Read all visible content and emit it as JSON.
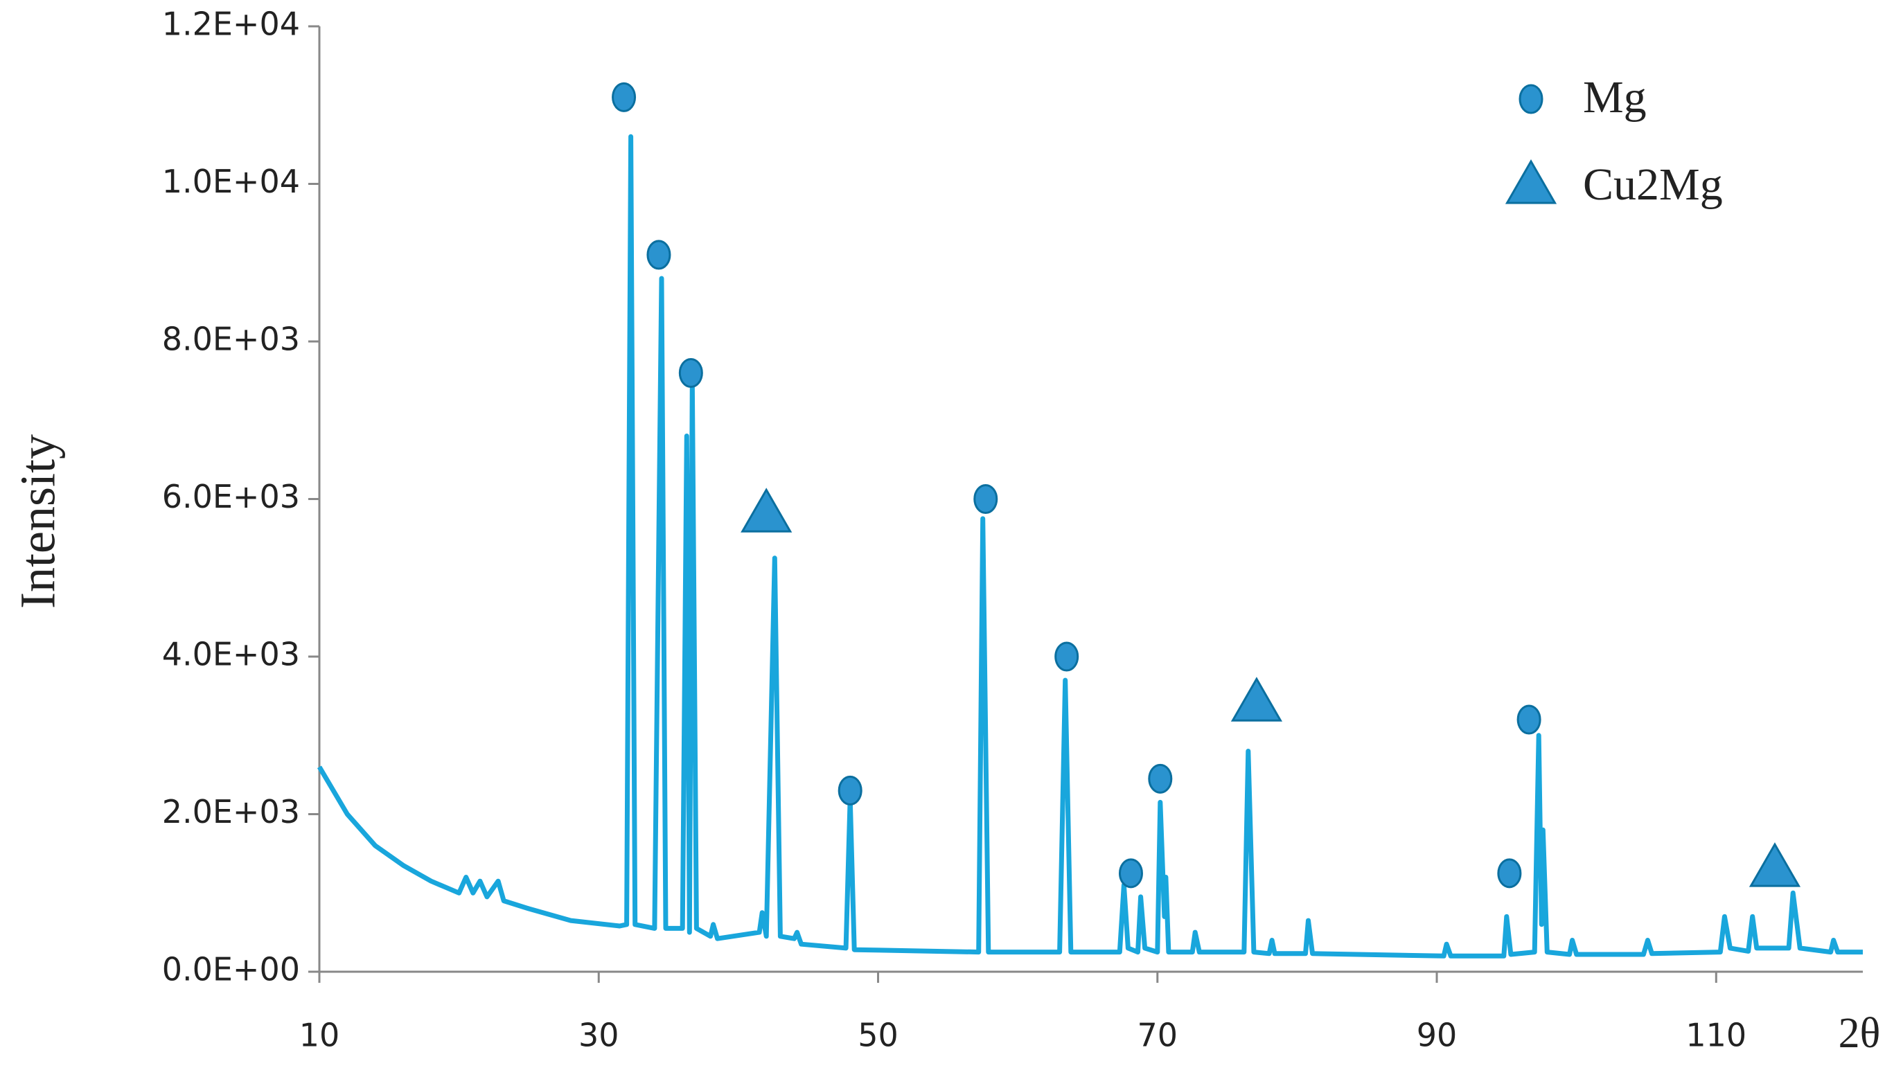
{
  "chart_data": {
    "type": "line",
    "y_label": "Intensity",
    "x_label": "2θ",
    "xlim": [
      10,
      120.5
    ],
    "xticks": [
      10,
      30,
      50,
      70,
      90,
      110
    ],
    "ylim": [
      0,
      12000
    ],
    "yticks": [
      {
        "value": 0,
        "label": "0.0E+00"
      },
      {
        "value": 2000,
        "label": "2.0E+03"
      },
      {
        "value": 4000,
        "label": "4.0E+03"
      },
      {
        "value": 6000,
        "label": "6.0E+03"
      },
      {
        "value": 8000,
        "label": "8.0E+03"
      },
      {
        "value": 10000,
        "label": "1.0E+04"
      },
      {
        "value": 12000,
        "label": "1.2E+04"
      }
    ],
    "color": "#19a6dc",
    "x": [
      10,
      12,
      14,
      16,
      18,
      20,
      20.5,
      21,
      21.5,
      22,
      22.8,
      23.2,
      25,
      28,
      31.5,
      32,
      32.3,
      32.6,
      34,
      34.5,
      34.8,
      36,
      36.3,
      36.5,
      36.7,
      37,
      38,
      38.2,
      38.5,
      41.5,
      41.7,
      42,
      42.6,
      43,
      44,
      44.2,
      44.5,
      47.7,
      48,
      48.3,
      57.2,
      57.5,
      57.9,
      63,
      63.4,
      63.8,
      67.3,
      67.6,
      67.9,
      68.6,
      68.8,
      69.1,
      70,
      70.2,
      70.5,
      70.6,
      70.8,
      72.5,
      72.7,
      73,
      76.2,
      76.5,
      76.9,
      78,
      78.2,
      78.4,
      80.6,
      80.8,
      81.1,
      90.5,
      90.7,
      91,
      94.8,
      95,
      95.3,
      97,
      97.3,
      97.5,
      97.6,
      97.9,
      99.5,
      99.7,
      100,
      104.8,
      105.1,
      105.4,
      110.3,
      110.6,
      111,
      112.3,
      112.6,
      112.9,
      115.2,
      115.5,
      116,
      118.2,
      118.4,
      118.7,
      120.5
    ],
    "values": [
      2600,
      2000,
      1600,
      1350,
      1150,
      1000,
      1200,
      1000,
      1150,
      950,
      1150,
      900,
      800,
      650,
      580,
      600,
      10600,
      600,
      550,
      8800,
      550,
      550,
      6800,
      500,
      7500,
      550,
      450,
      600,
      420,
      500,
      750,
      450,
      5250,
      450,
      420,
      500,
      350,
      300,
      2200,
      280,
      250,
      5750,
      250,
      250,
      3700,
      250,
      250,
      1100,
      300,
      250,
      950,
      300,
      250,
      2150,
      700,
      1200,
      250,
      250,
      500,
      250,
      250,
      2800,
      250,
      230,
      400,
      230,
      230,
      650,
      230,
      200,
      350,
      200,
      200,
      700,
      220,
      250,
      3000,
      600,
      1800,
      250,
      220,
      400,
      220,
      220,
      400,
      230,
      250,
      700,
      300,
      260,
      700,
      300,
      300,
      1000,
      300,
      250,
      400,
      250,
      250
    ],
    "markers": [
      {
        "name": "Mg",
        "shape": "circle",
        "color": "#2a93cf",
        "x": [
          31.8,
          34.3,
          36.6,
          48,
          57.7,
          63.5,
          68.1,
          70.2,
          95.2,
          96.6
        ],
        "y": [
          11100,
          9100,
          7600,
          2300,
          6000,
          4000,
          1250,
          2450,
          1250,
          3200
        ]
      },
      {
        "name": "Cu2Mg",
        "shape": "triangle",
        "color": "#2a93cf",
        "x": [
          42,
          77.1,
          114.2
        ],
        "y": [
          5800,
          3400,
          1300
        ]
      }
    ],
    "legend": "upper right"
  }
}
